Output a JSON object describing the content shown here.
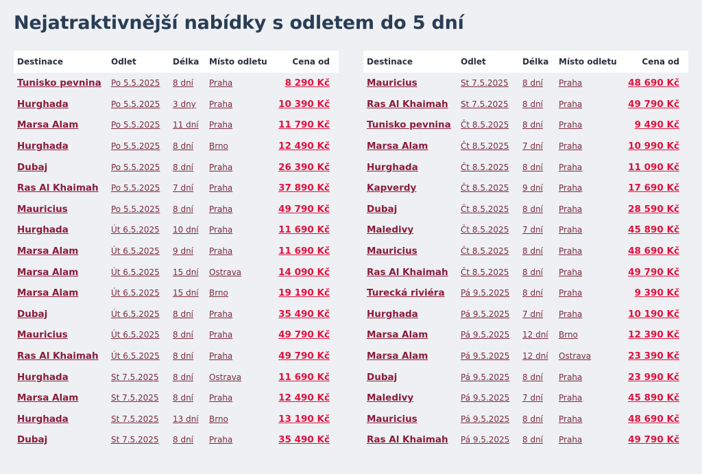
{
  "title": {
    "bold": "Nejatraktivnější nabídky",
    "rest": "s odletem do 5 dní"
  },
  "columns": {
    "dest": "Destinace",
    "date": "Odlet",
    "len": "Délka",
    "from": "Místo odletu",
    "price": "Cena od"
  },
  "colors": {
    "accent_link": "#8a1c3a",
    "price": "#e0123f",
    "background": "#eef0f3"
  },
  "left_rows": [
    {
      "dest": "Tunisko pevnina",
      "date": "Po 5.5.2025",
      "len": "8 dní",
      "from": "Praha",
      "price": "8 290 Kč"
    },
    {
      "dest": "Hurghada",
      "date": "Po 5.5.2025",
      "len": "3 dny",
      "from": "Praha",
      "price": "10 390 Kč"
    },
    {
      "dest": "Marsa Alam",
      "date": "Po 5.5.2025",
      "len": "11 dní",
      "from": "Praha",
      "price": "11 790 Kč"
    },
    {
      "dest": "Hurghada",
      "date": "Po 5.5.2025",
      "len": "8 dní",
      "from": "Brno",
      "price": "12 490 Kč"
    },
    {
      "dest": "Dubaj",
      "date": "Po 5.5.2025",
      "len": "8 dní",
      "from": "Praha",
      "price": "26 390 Kč"
    },
    {
      "dest": "Ras Al Khaimah",
      "date": "Po 5.5.2025",
      "len": "7 dní",
      "from": "Praha",
      "price": "37 890 Kč"
    },
    {
      "dest": "Mauricius",
      "date": "Po 5.5.2025",
      "len": "8 dní",
      "from": "Praha",
      "price": "49 790 Kč"
    },
    {
      "dest": "Hurghada",
      "date": "Út 6.5.2025",
      "len": "10 dní",
      "from": "Praha",
      "price": "11 690 Kč"
    },
    {
      "dest": "Marsa Alam",
      "date": "Út 6.5.2025",
      "len": "9 dní",
      "from": "Praha",
      "price": "11 690 Kč"
    },
    {
      "dest": "Marsa Alam",
      "date": "Út 6.5.2025",
      "len": "15 dní",
      "from": "Ostrava",
      "price": "14 090 Kč"
    },
    {
      "dest": "Marsa Alam",
      "date": "Út 6.5.2025",
      "len": "15 dní",
      "from": "Brno",
      "price": "19 190 Kč"
    },
    {
      "dest": "Dubaj",
      "date": "Út 6.5.2025",
      "len": "8 dní",
      "from": "Praha",
      "price": "35 490 Kč"
    },
    {
      "dest": "Mauricius",
      "date": "Út 6.5.2025",
      "len": "8 dní",
      "from": "Praha",
      "price": "49 790 Kč"
    },
    {
      "dest": "Ras Al Khaimah",
      "date": "Út 6.5.2025",
      "len": "8 dní",
      "from": "Praha",
      "price": "49 790 Kč"
    },
    {
      "dest": "Hurghada",
      "date": "St 7.5.2025",
      "len": "8 dní",
      "from": "Ostrava",
      "price": "11 690 Kč"
    },
    {
      "dest": "Marsa Alam",
      "date": "St 7.5.2025",
      "len": "8 dní",
      "from": "Praha",
      "price": "12 490 Kč"
    },
    {
      "dest": "Hurghada",
      "date": "St 7.5.2025",
      "len": "13 dní",
      "from": "Brno",
      "price": "13 190 Kč"
    },
    {
      "dest": "Dubaj",
      "date": "St 7.5.2025",
      "len": "8 dní",
      "from": "Praha",
      "price": "35 490 Kč"
    }
  ],
  "right_rows": [
    {
      "dest": "Mauricius",
      "date": "St 7.5.2025",
      "len": "8 dní",
      "from": "Praha",
      "price": "48 690 Kč"
    },
    {
      "dest": "Ras Al Khaimah",
      "date": "St 7.5.2025",
      "len": "8 dní",
      "from": "Praha",
      "price": "49 790 Kč"
    },
    {
      "dest": "Tunisko pevnina",
      "date": "Čt 8.5.2025",
      "len": "8 dní",
      "from": "Praha",
      "price": "9 490 Kč"
    },
    {
      "dest": "Marsa Alam",
      "date": "Čt 8.5.2025",
      "len": "7 dní",
      "from": "Praha",
      "price": "10 990 Kč"
    },
    {
      "dest": "Hurghada",
      "date": "Čt 8.5.2025",
      "len": "8 dní",
      "from": "Praha",
      "price": "11 090 Kč"
    },
    {
      "dest": "Kapverdy",
      "date": "Čt 8.5.2025",
      "len": "9 dní",
      "from": "Praha",
      "price": "17 690 Kč"
    },
    {
      "dest": "Dubaj",
      "date": "Čt 8.5.2025",
      "len": "8 dní",
      "from": "Praha",
      "price": "28 590 Kč"
    },
    {
      "dest": "Maledivy",
      "date": "Čt 8.5.2025",
      "len": "7 dní",
      "from": "Praha",
      "price": "45 890 Kč"
    },
    {
      "dest": "Mauricius",
      "date": "Čt 8.5.2025",
      "len": "8 dní",
      "from": "Praha",
      "price": "48 690 Kč"
    },
    {
      "dest": "Ras Al Khaimah",
      "date": "Čt 8.5.2025",
      "len": "8 dní",
      "from": "Praha",
      "price": "49 790 Kč"
    },
    {
      "dest": "Turecká riviéra",
      "date": "Pá 9.5.2025",
      "len": "8 dní",
      "from": "Praha",
      "price": "9 390 Kč"
    },
    {
      "dest": "Hurghada",
      "date": "Pá 9.5.2025",
      "len": "7 dní",
      "from": "Praha",
      "price": "10 190 Kč"
    },
    {
      "dest": "Marsa Alam",
      "date": "Pá 9.5.2025",
      "len": "12 dní",
      "from": "Brno",
      "price": "12 390 Kč"
    },
    {
      "dest": "Marsa Alam",
      "date": "Pá 9.5.2025",
      "len": "12 dní",
      "from": "Ostrava",
      "price": "23 390 Kč"
    },
    {
      "dest": "Dubaj",
      "date": "Pá 9.5.2025",
      "len": "8 dní",
      "from": "Praha",
      "price": "23 990 Kč"
    },
    {
      "dest": "Maledivy",
      "date": "Pá 9.5.2025",
      "len": "7 dní",
      "from": "Praha",
      "price": "45 890 Kč"
    },
    {
      "dest": "Mauricius",
      "date": "Pá 9.5.2025",
      "len": "8 dní",
      "from": "Praha",
      "price": "48 690 Kč"
    },
    {
      "dest": "Ras Al Khaimah",
      "date": "Pá 9.5.2025",
      "len": "8 dní",
      "from": "Praha",
      "price": "49 790 Kč"
    }
  ]
}
